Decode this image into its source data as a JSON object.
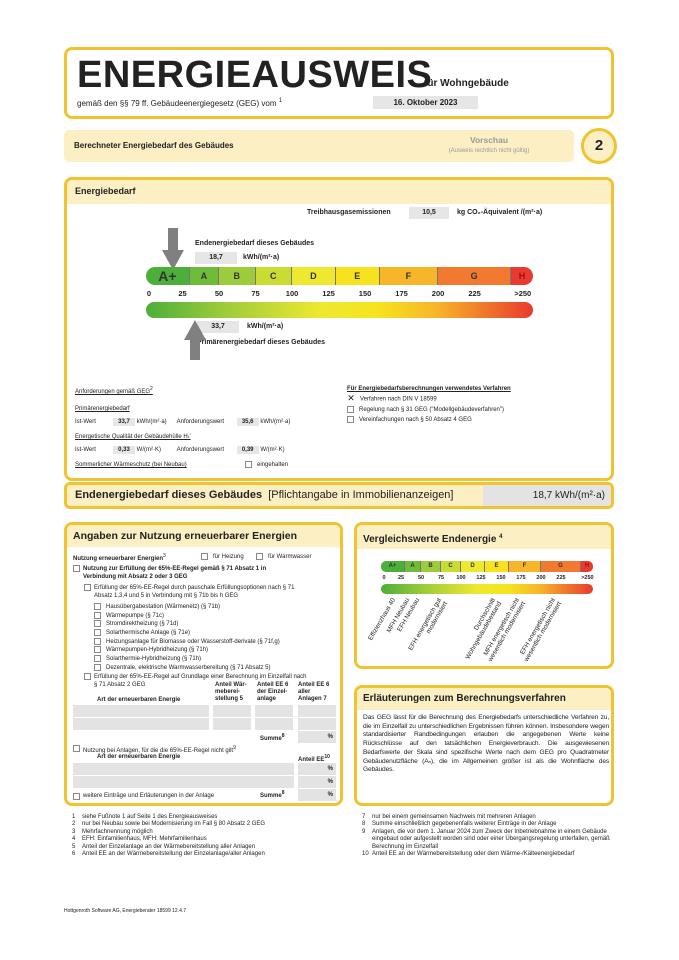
{
  "header": {
    "title": "ENERGIEAUSWEIS",
    "subtitle": "für Wohngebäude",
    "law": "gemäß den §§ 79 ff. Gebäudeenergiegesetz (GEG) vom",
    "law_sup": "1",
    "date": "16. Oktober 2023"
  },
  "section_bar": {
    "title": "Berechneter Energiebedarf des Gebäudes",
    "preview": "Vorschau",
    "preview_note": "(Ausweis rechtlich nicht gültig)",
    "page_number": "2"
  },
  "energiebedarf": {
    "title": "Energiebedarf",
    "ghg_label": "Treibhausgasemissionen",
    "ghg_value": "10,5",
    "ghg_unit": "kg CO₂-Äquivalent /(m²·a)",
    "end_label": "Endenergiebedarf dieses Gebäudes",
    "end_value": "18,7",
    "end_unit": "kWh/(m²·a)",
    "end_numeric": 18.7,
    "primary_label": "Primärenergiebedarf dieses Gebäudes",
    "primary_value": "33,7",
    "primary_unit": "kWh/(m²·a)",
    "primary_numeric": 33.7,
    "classes": [
      {
        "label": "A+",
        "from": 0,
        "to": 30,
        "color": "#4caf3a"
      },
      {
        "label": "A",
        "from": 30,
        "to": 50,
        "color": "#6fbb3a"
      },
      {
        "label": "B",
        "from": 50,
        "to": 75,
        "color": "#9ccb3b"
      },
      {
        "label": "C",
        "from": 75,
        "to": 100,
        "color": "#c8dc34"
      },
      {
        "label": "D",
        "from": 100,
        "to": 130,
        "color": "#eee830"
      },
      {
        "label": "E",
        "from": 130,
        "to": 160,
        "color": "#f6e31e"
      },
      {
        "label": "F",
        "from": 160,
        "to": 200,
        "color": "#f7b52a"
      },
      {
        "label": "G",
        "from": 200,
        "to": 250,
        "color": "#f27a30"
      },
      {
        "label": "H",
        "from": 250,
        "to": 265,
        "color": "#e83a2e"
      }
    ],
    "ticks": [
      "0",
      "25",
      "50",
      "75",
      "100",
      "125",
      "150",
      "175",
      "200",
      "225",
      ">250"
    ],
    "requirements": {
      "title": "Anforderungen gemäß GEG",
      "title_sup": "2",
      "primary_title": "Primärenergiebedarf",
      "ist_label": "Ist-Wert",
      "ist_primary": "33,7",
      "unit_kwh": "kWh/(m²·a)",
      "anf_label": "Anforderungswert",
      "anf_primary": "35,6",
      "envelope_title": "Energetische Qualität der Gebäudehülle Hₜ'",
      "ist_env": "0,33",
      "unit_wk": "W/(m²·K)",
      "anf_env": "0,39",
      "summer_label": "Sommerlicher Wärmeschutz (bei Neubau)",
      "summer_check": "eingehalten"
    },
    "method": {
      "title": "Für Energiebedarfsberechnungen verwendetes Verfahren",
      "options": [
        {
          "label": "Verfahren nach DIN V 18599",
          "checked": true
        },
        {
          "label": "Regelung nach § 31 GEG (\"Modellgebäudeverfahren\")",
          "checked": false
        },
        {
          "label": "Vereinfachungen nach § 50 Absatz 4 GEG",
          "checked": false
        }
      ]
    }
  },
  "endenergie_bar": {
    "label": "Endenergiebedarf dieses Gebäudes",
    "note": "[Pflichtangabe in Immobilienanzeigen]",
    "value": "18,7 kWh/(m²·a)"
  },
  "renewables": {
    "title": "Angaben zur Nutzung erneuerbarer Energien",
    "usage_label": "Nutzung erneuerbarer Energien",
    "usage_sup": "3",
    "heating": "für Heizung",
    "water": "für Warmwasser",
    "rule71": "Nutzung zur Erfüllung der 65%-EE-Regel gemäß § 71 Absatz 1 in Verbindung mit Absatz 2 oder 3 GEG",
    "flat": "Erfüllung der 65%-EE-Regel durch pauschale Erfüllungsoptionen nach § 71 Absatz 1,3,4 und 5 in Verbindung mit § 71b bis h GEG",
    "options": [
      "Hausübergabestation (Wärmenetz) (§ 71b)",
      "Wärmepumpe (§ 71c)",
      "Stromdirektheizung (§ 71d)",
      "Solarthermische Anlage (§ 71e)",
      "Heizungsanlage für Biomasse oder Wasserstoff-derivate (§ 71f,g)",
      "Wärmepumpen-Hybridheizung (§ 71h)",
      "Solarthermie-Hybridheizung (§ 71h)",
      "Dezentrale, elektrische Warmwasserbereitung (§ 71 Absatz 5)"
    ],
    "calc": "Erfüllung der 65%-EE-Regel auf Grundlage einer Berechnung im Einzelfall nach § 71 Absatz 2 GEG",
    "col_type": "Art der erneuerbaren Energie",
    "col_share_heat": "Anteil Wär-meberei-stellung 5",
    "col_share_single": "Anteil EE 6 der Einzel-anlage",
    "col_share_all": "Anteil EE 6 aller Anlagen 7",
    "sum_label": "Summe",
    "sum_sup": "8",
    "pct": "%",
    "not_applicable": "Nutzung bei Anlagen, für die die 65%-EE-Regel nicht gilt",
    "na_sup": "9",
    "col_share_ee": "Anteil EE",
    "col_share_ee_sup": "10",
    "more": "weitere Einträge und Erläuterungen in der Anlage"
  },
  "comparison": {
    "title": "Vergleichswerte Endenergie",
    "title_sup": "4",
    "ticks": [
      "0",
      "25",
      "50",
      "75",
      "100",
      "125",
      "150",
      "175",
      "200",
      "225",
      ">250"
    ],
    "refs": [
      {
        "label": "Effizienzhaus 40",
        "value": 20
      },
      {
        "label": "MFH Neubau",
        "value": 38
      },
      {
        "label": "EFH Neubau",
        "value": 50
      },
      {
        "label": "EFH energetisch gut modernisiert",
        "value": 78
      },
      {
        "label": "Durchschnitt Wohngebäudebestand",
        "value": 145
      },
      {
        "label": "MFH energetisch nicht wesentlich modernisiert",
        "value": 175
      },
      {
        "label": "EFH energetisch nicht wesentlich modernisiert",
        "value": 220
      }
    ]
  },
  "explanation": {
    "title": "Erläuterungen zum Berechnungsverfahren",
    "text": "Das GEG lässt für die Berechnung des Energiebedarfs unterschiedliche Verfahren zu, die im Einzelfall zu unterschiedlichen Ergebnissen führen können. Insbesondere wegen standardisierter Randbedingungen erlauben die angegebenen Werte keine Rückschlüsse auf den tatsächlichen Energieverbrauch. Die ausgewiesenen Bedarfswerte der Skala sind spezifische Werte nach dem GEG pro Quadratmeter Gebäudenutzfläche (Aₙ), die im Allgemeinen größer ist als die Wohnfläche des Gebäudes."
  },
  "footnotes_left": [
    [
      "1",
      "siehe Fußnote 1 auf Seite 1 des Energieausweises"
    ],
    [
      "2",
      "nur bei Neubau sowie bei Modernisierung im Fall § 80 Absatz 2 GEG"
    ],
    [
      "3",
      "Mehrfachnennung möglich"
    ],
    [
      "4",
      "EFH: Einfamilienhaus, MFH: Mehrfamilienhaus"
    ],
    [
      "5",
      "Anteil der Einzelanlage an der Wärmebereitstellung aller Anlagen"
    ],
    [
      "6",
      "Anteil EE an der Wärmebereitstellung der Einzelanlage/aller Anlagen"
    ]
  ],
  "footnotes_right": [
    [
      "7",
      "nur bei einem gemeinsamen Nachweis mit mehreren Anlagen"
    ],
    [
      "8",
      "Summe einschließlich gegebenenfalls weiterer Einträge in der Anlage"
    ],
    [
      "9",
      "Anlagen, die vor dem 1. Januar 2024 zum Zweck der Inbetriebnahme in einem Gebäude eingebaut oder aufgestellt worden sind oder einer Übergangsregelung unterfallen, gemäß Berechnung im Einzelfall"
    ],
    [
      "10",
      "Anteil EE an der Wärmebereitstellung oder dem Wärme-/Kälteenergiebedarf"
    ]
  ],
  "footer": "Hottgenroth Software AG, Energieberater 18599 12.4.7"
}
